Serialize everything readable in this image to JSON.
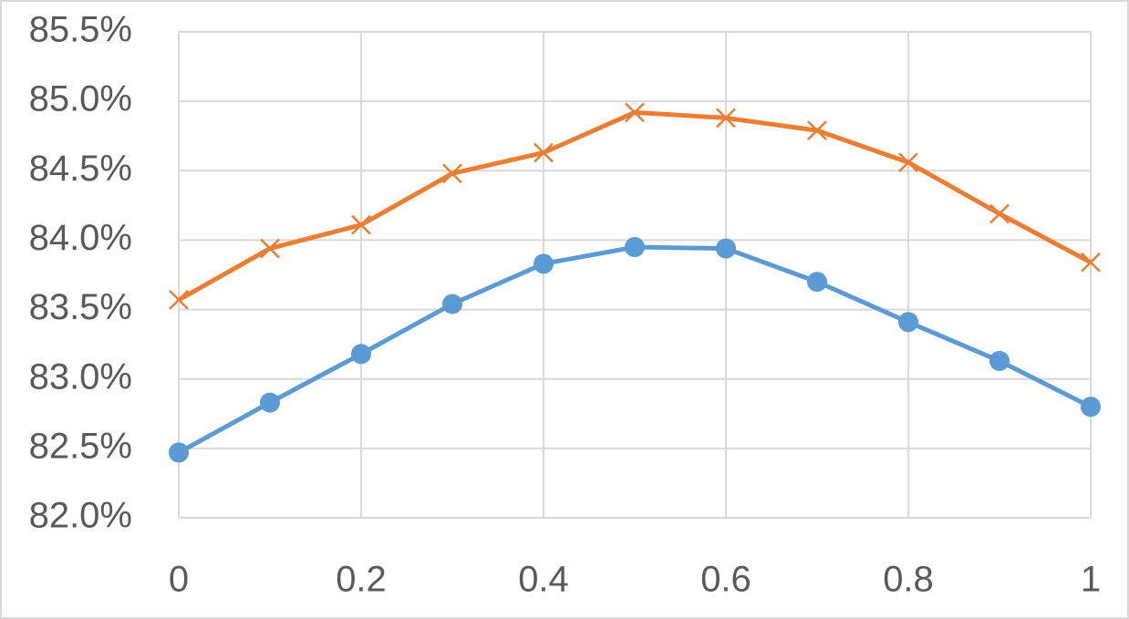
{
  "chart_data": {
    "type": "line",
    "x": [
      0,
      0.1,
      0.2,
      0.3,
      0.4,
      0.5,
      0.6,
      0.7,
      0.8,
      0.9,
      1
    ],
    "series": [
      {
        "color": "#5b9bd5",
        "marker": "circle",
        "values": [
          82.47,
          82.83,
          83.18,
          83.54,
          83.83,
          83.95,
          83.94,
          83.7,
          83.41,
          83.13,
          82.8
        ]
      },
      {
        "color": "#ed7d31",
        "marker": "x",
        "values": [
          83.57,
          83.94,
          84.11,
          84.48,
          84.63,
          84.92,
          84.88,
          84.79,
          84.56,
          84.19,
          83.84
        ]
      }
    ],
    "xlim": [
      0,
      1
    ],
    "xticks": [
      0,
      0.2,
      0.4,
      0.6,
      0.8,
      1
    ],
    "ylim": [
      82,
      85.5
    ],
    "yticks": [
      {
        "value": 82,
        "label": "82.0%"
      },
      {
        "value": 82.5,
        "label": "82.5%"
      },
      {
        "value": 83,
        "label": "83.0%"
      },
      {
        "value": 83.5,
        "label": "83.5%"
      },
      {
        "value": 84,
        "label": "84.0%"
      },
      {
        "value": 84.5,
        "label": "84.5%"
      },
      {
        "value": 85,
        "label": "85.0%"
      },
      {
        "value": 85.5,
        "label": "85.5%"
      }
    ],
    "grid": true
  }
}
